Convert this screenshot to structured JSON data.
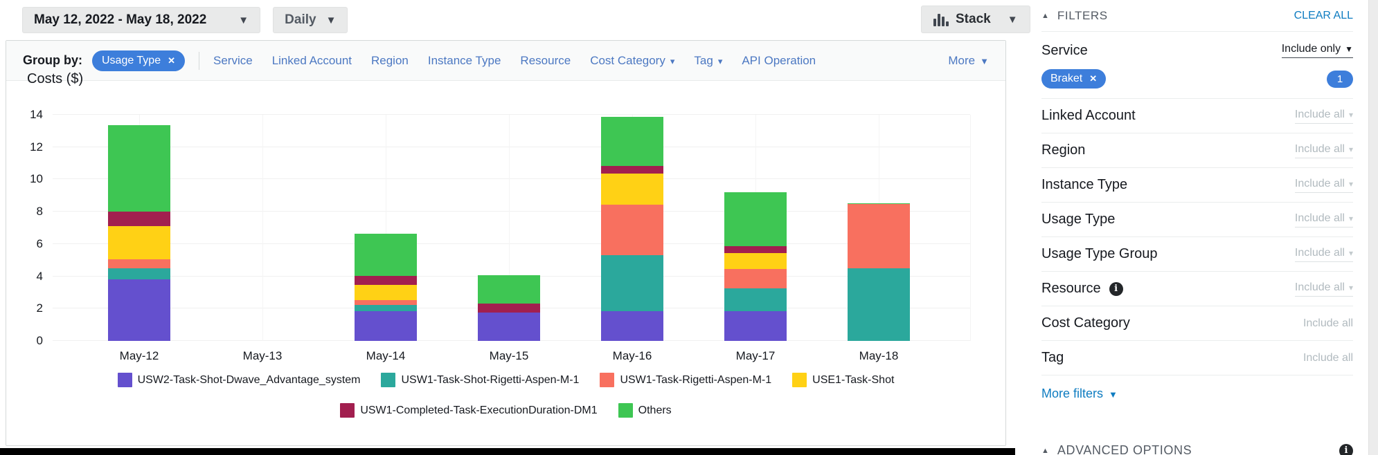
{
  "toolbar": {
    "date_range": "May 12, 2022 - May 18, 2022",
    "granularity": "Daily",
    "chart_style": "Stack"
  },
  "group_by": {
    "label": "Group by:",
    "chip": "Usage Type",
    "items": [
      {
        "label": "Service"
      },
      {
        "label": "Linked Account"
      },
      {
        "label": "Region"
      },
      {
        "label": "Instance Type"
      },
      {
        "label": "Resource"
      },
      {
        "label": "Cost Category",
        "dropdown": true
      },
      {
        "label": "Tag",
        "dropdown": true
      },
      {
        "label": "API Operation"
      }
    ],
    "more": "More"
  },
  "chart_data": {
    "type": "bar",
    "stacked": true,
    "title": "Costs ($)",
    "ylabel": "Costs ($)",
    "xlabel": "",
    "ylim": [
      0,
      14
    ],
    "yticks": [
      0,
      2,
      4,
      6,
      8,
      10,
      12,
      14
    ],
    "grid": true,
    "legend_position": "bottom",
    "categories": [
      "May-12",
      "May-13",
      "May-14",
      "May-15",
      "May-16",
      "May-17",
      "May-18"
    ],
    "series": [
      {
        "name": "USW2-Task-Shot-Dwave_Advantage_system",
        "color": "#6450ce",
        "values": [
          3.8,
          0,
          1.86,
          1.75,
          1.86,
          1.86,
          0
        ]
      },
      {
        "name": "USW1-Task-Shot-Rigetti-Aspen-M-1",
        "color": "#2ba89c",
        "values": [
          0.68,
          0,
          0.39,
          0,
          3.47,
          1.39,
          4.51
        ]
      },
      {
        "name": "USW1-Task-Rigetti-Aspen-M-1",
        "color": "#f8705f",
        "values": [
          0.57,
          0,
          0.26,
          0,
          3.12,
          1.22,
          3.95
        ]
      },
      {
        "name": "USE1-Task-Shot",
        "color": "#ffd115",
        "values": [
          2.05,
          0,
          0.96,
          0,
          1.91,
          0.95,
          0
        ]
      },
      {
        "name": "USW1-Completed-Task-ExecutionDuration-DM1",
        "color": "#a21f4f",
        "values": [
          0.9,
          0,
          0.56,
          0.58,
          0.48,
          0.43,
          0
        ]
      },
      {
        "name": "Others",
        "color": "#3ec653",
        "values": [
          5.35,
          0,
          2.6,
          1.75,
          3.03,
          3.38,
          0.08
        ]
      }
    ]
  },
  "filters": {
    "header": "FILTERS",
    "clear_all": "CLEAR ALL",
    "service": {
      "label": "Service",
      "mode": "Include only",
      "chip": "Braket",
      "count": "1"
    },
    "rows": [
      {
        "label": "Linked Account",
        "value": "Include all",
        "arrow": true
      },
      {
        "label": "Region",
        "value": "Include all",
        "arrow": true
      },
      {
        "label": "Instance Type",
        "value": "Include all",
        "arrow": true
      },
      {
        "label": "Usage Type",
        "value": "Include all",
        "arrow": true
      },
      {
        "label": "Usage Type Group",
        "value": "Include all",
        "arrow": true
      },
      {
        "label": "Resource",
        "value": "Include all",
        "arrow": true,
        "info": true
      },
      {
        "label": "Cost Category",
        "value": "Include all",
        "arrow": false
      },
      {
        "label": "Tag",
        "value": "Include all",
        "arrow": false
      }
    ],
    "more_filters": "More filters",
    "advanced_options": "ADVANCED OPTIONS"
  },
  "colors": {
    "chip_blue": "#3d7edb",
    "nav_link_blue": "#4c78c2",
    "action_link_blue": "#0e7cc1"
  }
}
